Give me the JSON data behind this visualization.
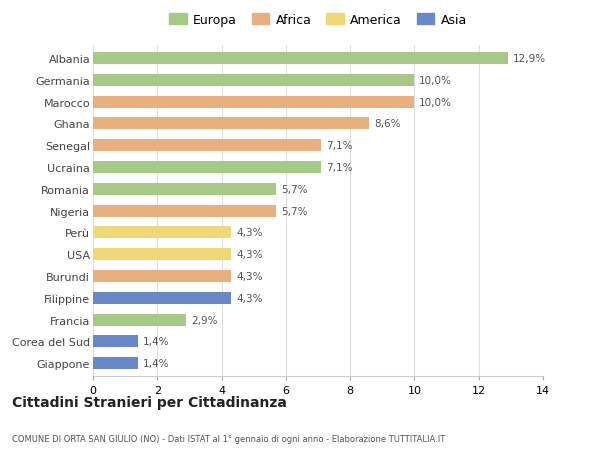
{
  "categories": [
    "Albania",
    "Germania",
    "Marocco",
    "Ghana",
    "Senegal",
    "Ucraina",
    "Romania",
    "Nigeria",
    "Perù",
    "USA",
    "Burundi",
    "Filippine",
    "Francia",
    "Corea del Sud",
    "Giappone"
  ],
  "values": [
    12.9,
    10.0,
    10.0,
    8.6,
    7.1,
    7.1,
    5.7,
    5.7,
    4.3,
    4.3,
    4.3,
    4.3,
    2.9,
    1.4,
    1.4
  ],
  "labels": [
    "12,9%",
    "10,0%",
    "10,0%",
    "8,6%",
    "7,1%",
    "7,1%",
    "5,7%",
    "5,7%",
    "4,3%",
    "4,3%",
    "4,3%",
    "4,3%",
    "2,9%",
    "1,4%",
    "1,4%"
  ],
  "continent": [
    "Europa",
    "Europa",
    "Africa",
    "Africa",
    "Africa",
    "Europa",
    "Europa",
    "Africa",
    "America",
    "America",
    "Africa",
    "Asia",
    "Europa",
    "Asia",
    "Asia"
  ],
  "colors": {
    "Europa": "#a8c888",
    "Africa": "#e8b080",
    "America": "#f0d878",
    "Asia": "#6888c8"
  },
  "legend_order": [
    "Europa",
    "Africa",
    "America",
    "Asia"
  ],
  "title": "Cittadini Stranieri per Cittadinanza",
  "subtitle": "COMUNE DI ORTA SAN GIULIO (NO) - Dati ISTAT al 1° gennaio di ogni anno - Elaborazione TUTTITALIA.IT",
  "xlim": [
    0,
    14
  ],
  "xticks": [
    0,
    2,
    4,
    6,
    8,
    10,
    12,
    14
  ],
  "background_color": "#ffffff",
  "grid_color": "#dddddd"
}
